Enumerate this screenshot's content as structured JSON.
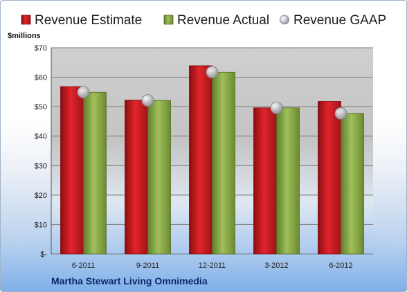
{
  "chart_data": {
    "type": "bar",
    "ylabel": "$millions",
    "categories": [
      "6-2011",
      "9-2011",
      "12-2011",
      "3-2012",
      "6-2012"
    ],
    "series": [
      {
        "name": "Revenue Estimate",
        "color": "#c8161d",
        "values": [
          56.8,
          52.2,
          63.9,
          49.6,
          51.8
        ]
      },
      {
        "name": "Revenue Actual",
        "color": "#86a843",
        "values": [
          54.9,
          52.1,
          61.7,
          49.6,
          47.7
        ]
      }
    ],
    "markers": {
      "name": "Revenue GAAP",
      "color": "#b9bcc2",
      "values": [
        54.9,
        52.1,
        61.7,
        49.6,
        47.7
      ]
    },
    "yticks": [
      "$-",
      "$10",
      "$20",
      "$30",
      "$40",
      "$50",
      "$60",
      "$70"
    ],
    "ylim": [
      0,
      70
    ],
    "grid": true,
    "legend": "top"
  },
  "company_name": "Martha Stewart Living Omnimedia"
}
